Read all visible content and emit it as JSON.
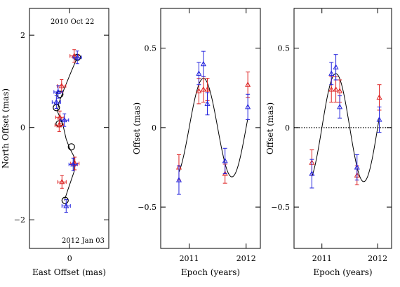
{
  "chart_data": [
    {
      "type": "scatter",
      "panel": "sky-track",
      "xlabel": "East Offset (mas)",
      "ylabel": "North Offset (mas)",
      "xlim": [
        -1.15,
        1.12
      ],
      "ylim": [
        -2.62,
        2.58
      ],
      "xticks": [
        0
      ],
      "xtick_labels": [
        "0"
      ],
      "yticks": [
        -2,
        0,
        2
      ],
      "ytick_labels": [
        "−2",
        "0",
        "2"
      ],
      "annotations": [
        "2010 Oct 22",
        "2012 Jan 03"
      ],
      "series": [
        {
          "color": "#dd2222",
          "points": [
            {
              "x": 0.13,
              "y": 1.55
            },
            {
              "x": -0.23,
              "y": 0.9
            },
            {
              "x": -0.28,
              "y": 0.22
            },
            {
              "x": -0.3,
              "y": 0.05
            },
            {
              "x": 0.15,
              "y": -0.78
            },
            {
              "x": -0.22,
              "y": -1.18
            }
          ]
        },
        {
          "color": "#2222dd",
          "points": [
            {
              "x": 0.22,
              "y": 1.52
            },
            {
              "x": -0.33,
              "y": 0.77
            },
            {
              "x": -0.38,
              "y": 0.55
            },
            {
              "x": -0.15,
              "y": 0.16
            },
            {
              "x": 0.1,
              "y": -0.8
            },
            {
              "x": -0.1,
              "y": -1.7
            }
          ]
        }
      ],
      "model_track": [
        {
          "x": 0.22,
          "y": 1.52
        },
        {
          "x": 0.05,
          "y": 1.22
        },
        {
          "x": -0.15,
          "y": 0.85
        },
        {
          "x": -0.3,
          "y": 0.55
        },
        {
          "x": -0.35,
          "y": 0.35
        },
        {
          "x": -0.2,
          "y": 0.08
        },
        {
          "x": -0.1,
          "y": -0.25
        },
        {
          "x": 0.0,
          "y": -0.45
        },
        {
          "x": 0.12,
          "y": -0.62
        },
        {
          "x": 0.13,
          "y": -0.95
        },
        {
          "x": -0.05,
          "y": -1.35
        },
        {
          "x": -0.15,
          "y": -1.58
        }
      ],
      "model_epochs": [
        {
          "x": 0.22,
          "y": 1.52
        },
        {
          "x": -0.28,
          "y": 0.72
        },
        {
          "x": -0.38,
          "y": 0.43
        },
        {
          "x": -0.3,
          "y": 0.08
        },
        {
          "x": 0.05,
          "y": -0.42
        },
        {
          "x": -0.13,
          "y": -1.58
        }
      ]
    },
    {
      "type": "scatter",
      "panel": "parallax",
      "xlabel": "Epoch (years)",
      "ylabel": "Offset (mas)",
      "xlim": [
        2010.5,
        2012.25
      ],
      "ylim": [
        -0.76,
        0.75
      ],
      "xticks": [
        2011,
        2012
      ],
      "xtick_labels": [
        "2011",
        "2012"
      ],
      "yticks": [
        -0.5,
        0,
        0.5
      ],
      "ytick_labels": [
        "−0.5",
        "0",
        "0.5"
      ],
      "zero_line": false,
      "series": [
        {
          "color": "#dd2222",
          "points": [
            {
              "x": 2010.82,
              "y": -0.25,
              "err": 0.08
            },
            {
              "x": 2011.17,
              "y": 0.23,
              "err": 0.08
            },
            {
              "x": 2011.25,
              "y": 0.24,
              "err": 0.08
            },
            {
              "x": 2011.32,
              "y": 0.24,
              "err": 0.07
            },
            {
              "x": 2011.63,
              "y": -0.29,
              "err": 0.06
            },
            {
              "x": 2012.03,
              "y": 0.27,
              "err": 0.08
            }
          ]
        },
        {
          "color": "#2222dd",
          "points": [
            {
              "x": 2010.82,
              "y": -0.33,
              "err": 0.09
            },
            {
              "x": 2011.17,
              "y": 0.34,
              "err": 0.07
            },
            {
              "x": 2011.25,
              "y": 0.4,
              "err": 0.08
            },
            {
              "x": 2011.32,
              "y": 0.15,
              "err": 0.07
            },
            {
              "x": 2011.63,
              "y": -0.21,
              "err": 0.08
            },
            {
              "x": 2012.03,
              "y": 0.13,
              "err": 0.08
            }
          ]
        }
      ],
      "model": {
        "amplitude": 0.31,
        "period": 1.0,
        "peak_epoch": 2011.25,
        "x_range": [
          2010.82,
          2012.03
        ]
      }
    },
    {
      "type": "scatter",
      "panel": "parallax-residual",
      "xlabel": "Epoch (years)",
      "ylabel": "Offset (mas)",
      "xlim": [
        2010.5,
        2012.25
      ],
      "ylim": [
        -0.76,
        0.75
      ],
      "xticks": [
        2011,
        2012
      ],
      "xtick_labels": [
        "2011",
        "2012"
      ],
      "yticks": [
        -0.5,
        0,
        0.5
      ],
      "ytick_labels": [
        "−0.5",
        "0",
        "0.5"
      ],
      "zero_line": true,
      "series": [
        {
          "color": "#dd2222",
          "points": [
            {
              "x": 2010.82,
              "y": -0.22,
              "err": 0.08
            },
            {
              "x": 2011.17,
              "y": 0.24,
              "err": 0.08
            },
            {
              "x": 2011.25,
              "y": 0.24,
              "err": 0.08
            },
            {
              "x": 2011.32,
              "y": 0.23,
              "err": 0.07
            },
            {
              "x": 2011.63,
              "y": -0.3,
              "err": 0.06
            },
            {
              "x": 2012.03,
              "y": 0.19,
              "err": 0.08
            }
          ]
        },
        {
          "color": "#2222dd",
          "points": [
            {
              "x": 2010.82,
              "y": -0.29,
              "err": 0.09
            },
            {
              "x": 2011.17,
              "y": 0.34,
              "err": 0.07
            },
            {
              "x": 2011.25,
              "y": 0.38,
              "err": 0.08
            },
            {
              "x": 2011.32,
              "y": 0.13,
              "err": 0.07
            },
            {
              "x": 2011.63,
              "y": -0.25,
              "err": 0.08
            },
            {
              "x": 2012.03,
              "y": 0.05,
              "err": 0.08
            }
          ]
        }
      ],
      "model": {
        "amplitude": 0.34,
        "period": 1.0,
        "peak_epoch": 2011.25,
        "x_range": [
          2010.82,
          2012.03
        ]
      }
    }
  ]
}
